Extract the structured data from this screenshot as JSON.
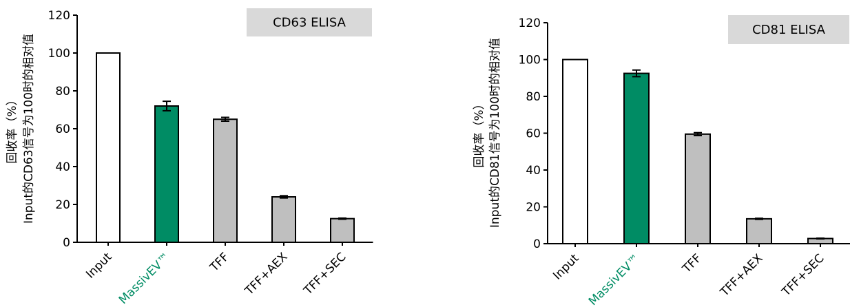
{
  "chart_data": [
    {
      "type": "bar",
      "title": "CD63 ELISA",
      "ylabel_line1": "回收率（%）",
      "ylabel_line2": "Input的CD63信号为100时的相对值",
      "xlabel": "",
      "ylim": [
        0,
        120
      ],
      "yticks": [
        "0",
        "20",
        "40",
        "60",
        "80",
        "100",
        "120"
      ],
      "categories": [
        "Input",
        "MassivEV™",
        "TFF",
        "TFF+AEX",
        "TFF+SEC"
      ],
      "values": [
        100,
        72,
        65,
        24,
        12.5
      ],
      "errors": [
        0,
        2.5,
        1,
        0.6,
        0.3
      ],
      "bar_colors": [
        "#ffffff",
        "#008c64",
        "#bfbfbf",
        "#bfbfbf",
        "#bfbfbf"
      ],
      "label_colors": [
        "#000000",
        "#008c64",
        "#000000",
        "#000000",
        "#000000"
      ]
    },
    {
      "type": "bar",
      "title": "CD81 ELISA",
      "ylabel_line1": "回收率（%）",
      "ylabel_line2": "Input的CD81信号为100时的相对值",
      "xlabel": "",
      "ylim": [
        0,
        120
      ],
      "yticks": [
        "0",
        "20",
        "40",
        "60",
        "80",
        "100",
        "120"
      ],
      "categories": [
        "Input",
        "MassivEV™",
        "TFF",
        "TFF+AEX",
        "TFF+SEC"
      ],
      "values": [
        100,
        92.5,
        59.5,
        13.5,
        2.8
      ],
      "errors": [
        0,
        1.8,
        0.8,
        0.3,
        0.2
      ],
      "bar_colors": [
        "#ffffff",
        "#008c64",
        "#bfbfbf",
        "#bfbfbf",
        "#bfbfbf"
      ],
      "label_colors": [
        "#000000",
        "#008c64",
        "#000000",
        "#000000",
        "#000000"
      ]
    }
  ]
}
